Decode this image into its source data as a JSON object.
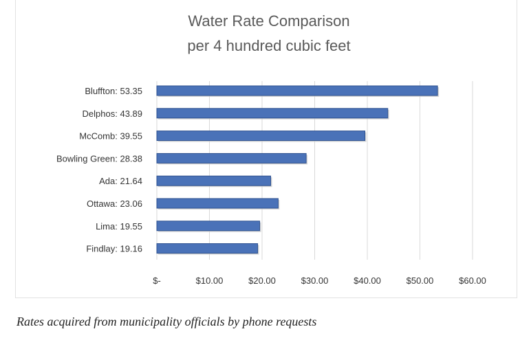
{
  "chart_data": {
    "type": "bar",
    "orientation": "horizontal",
    "title": "Water Rate Comparison",
    "subtitle": "per 4 hundred cubic feet",
    "categories": [
      "Bluffton: 53.35",
      "Delphos: 43.89",
      "McComb: 39.55",
      "Bowling Green: 28.38",
      "Ada: 21.64",
      "Ottawa: 23.06",
      "Lima: 19.55",
      "Findlay: 19.16"
    ],
    "values": [
      53.35,
      43.89,
      39.55,
      28.38,
      21.64,
      23.06,
      19.55,
      19.16
    ],
    "x_ticks": [
      0,
      10,
      20,
      30,
      40,
      50,
      60
    ],
    "x_tick_labels": [
      "$-",
      "$10.00",
      "$20.00",
      "$30.00",
      "$40.00",
      "$50.00",
      "$60.00"
    ],
    "xlim": [
      0,
      60
    ],
    "xlabel": "",
    "ylabel": "",
    "grid": true,
    "bar_color": "#4a72b8",
    "bar_edge_color": "#2f528f"
  },
  "caption": "Rates acquired from municipality officials by phone requests"
}
